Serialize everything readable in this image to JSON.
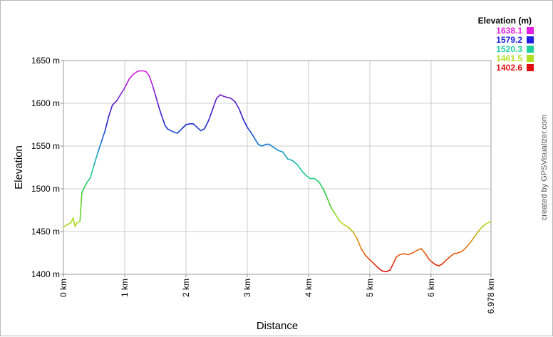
{
  "chart_data": {
    "type": "line",
    "title": "",
    "xlabel": "Distance",
    "ylabel": "Elevation",
    "xlim": [
      0,
      6.978
    ],
    "ylim": [
      1400,
      1650
    ],
    "grid": true,
    "legend_position": "top-right",
    "x_ticks": [
      {
        "value": 0,
        "label": "0 km"
      },
      {
        "value": 1,
        "label": "1 km"
      },
      {
        "value": 2,
        "label": "2 km"
      },
      {
        "value": 3,
        "label": "3 km"
      },
      {
        "value": 4,
        "label": "4 km"
      },
      {
        "value": 5,
        "label": "5 km"
      },
      {
        "value": 6,
        "label": "6 km"
      },
      {
        "value": 6.978,
        "label": "6.978 km"
      }
    ],
    "y_ticks": [
      {
        "value": 1400,
        "label": "1400 m"
      },
      {
        "value": 1450,
        "label": "1450 m"
      },
      {
        "value": 1500,
        "label": "1500 m"
      },
      {
        "value": 1550,
        "label": "1550 m"
      },
      {
        "value": 1600,
        "label": "1600 m"
      },
      {
        "value": 1650,
        "label": "1650 m"
      }
    ],
    "legend": {
      "title": "Elevation (m)",
      "entries": [
        {
          "label": "1638.1",
          "color": "#e020e0"
        },
        {
          "label": "1579.2",
          "color": "#2020e0"
        },
        {
          "label": "1520.3",
          "color": "#20d0a0"
        },
        {
          "label": "1461.5",
          "color": "#b0e020"
        },
        {
          "label": "1402.6",
          "color": "#e01010"
        }
      ]
    },
    "series": [
      {
        "x": [
          0,
          0.06,
          0.12,
          0.16,
          0.19,
          0.22,
          0.27,
          0.3,
          0.33,
          0.38,
          0.44,
          0.5,
          0.56,
          0.62,
          0.68,
          0.74,
          0.8,
          0.87,
          0.93,
          1.0,
          1.07,
          1.14,
          1.2,
          1.25,
          1.3,
          1.35,
          1.4,
          1.45,
          1.5,
          1.56,
          1.62,
          1.66,
          1.7,
          1.78,
          1.86,
          1.93,
          2.0,
          2.06,
          2.12,
          2.18,
          2.24,
          2.3,
          2.37,
          2.44,
          2.5,
          2.56,
          2.62,
          2.67,
          2.73,
          2.8,
          2.87,
          2.93,
          3.0,
          3.06,
          3.12,
          3.18,
          3.24,
          3.3,
          3.36,
          3.42,
          3.5,
          3.58,
          3.66,
          3.74,
          3.82,
          3.9,
          3.97,
          4.03,
          4.1,
          4.17,
          4.24,
          4.3,
          4.37,
          4.44,
          4.51,
          4.58,
          4.65,
          4.72,
          4.79,
          4.86,
          4.93,
          5.0,
          5.06,
          5.13,
          5.2,
          5.27,
          5.33,
          5.38,
          5.43,
          5.49,
          5.56,
          5.63,
          5.7,
          5.77,
          5.84,
          5.91,
          5.96,
          6.02,
          6.08,
          6.13,
          6.18,
          6.24,
          6.3,
          6.37,
          6.44,
          6.51,
          6.58,
          6.65,
          6.72,
          6.78,
          6.84,
          6.9,
          6.95,
          6.978
        ],
        "y": [
          1455,
          1458,
          1460,
          1466,
          1456,
          1460,
          1462,
          1495,
          1500,
          1507,
          1513,
          1528,
          1542,
          1555,
          1568,
          1585,
          1598,
          1603,
          1610,
          1618,
          1628,
          1634,
          1637,
          1638,
          1638,
          1637,
          1632,
          1622,
          1610,
          1595,
          1582,
          1574,
          1570,
          1567,
          1565,
          1570,
          1575,
          1576,
          1576,
          1572,
          1568,
          1570,
          1580,
          1594,
          1606,
          1610,
          1608,
          1607,
          1606,
          1602,
          1593,
          1582,
          1572,
          1566,
          1559,
          1552,
          1550,
          1552,
          1552,
          1549,
          1545,
          1543,
          1535,
          1533,
          1528,
          1520,
          1515,
          1512,
          1512,
          1508,
          1500,
          1490,
          1478,
          1470,
          1462,
          1458,
          1455,
          1450,
          1442,
          1430,
          1422,
          1417,
          1413,
          1408,
          1404,
          1403,
          1405,
          1412,
          1420,
          1423,
          1424,
          1423,
          1425,
          1428,
          1430,
          1424,
          1418,
          1414,
          1411,
          1410,
          1412,
          1416,
          1420,
          1424,
          1425,
          1427,
          1432,
          1438,
          1445,
          1451,
          1456,
          1459,
          1461,
          1462
        ]
      }
    ]
  },
  "credit": "created by GPSVisualizer.com"
}
